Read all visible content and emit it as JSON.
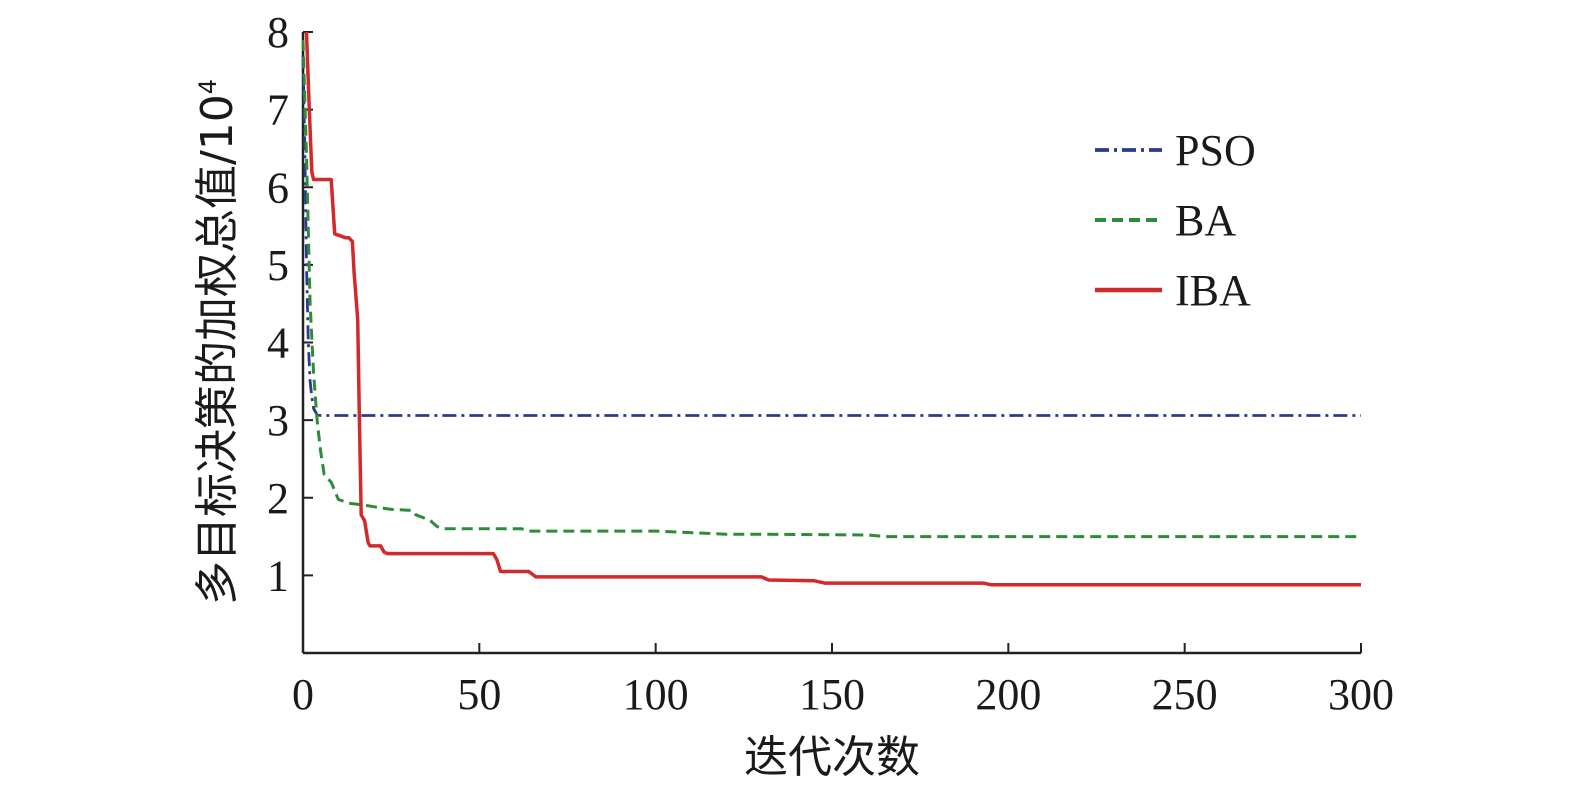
{
  "chart_data": {
    "type": "line",
    "title": "",
    "xlabel": "迭代次数",
    "ylabel": "多目标决策的加权总值/10",
    "ylabel_superscript": "4",
    "xlim": [
      0,
      300
    ],
    "ylim": [
      0,
      8
    ],
    "x_ticks": [
      "0",
      "50",
      "100",
      "150",
      "200",
      "250",
      "300"
    ],
    "y_ticks": [
      "1",
      "2",
      "3",
      "4",
      "5",
      "6",
      "7",
      "8"
    ],
    "grid": false,
    "legend_position": "top-right",
    "series": [
      {
        "name": "PSO",
        "color": "#2b3a8f",
        "dash": "dashdot",
        "points": [
          [
            0,
            7.7
          ],
          [
            0.5,
            6.5
          ],
          [
            1,
            5.0
          ],
          [
            1.5,
            4.0
          ],
          [
            2,
            3.5
          ],
          [
            2.5,
            3.3
          ],
          [
            3,
            3.15
          ],
          [
            4,
            3.07
          ],
          [
            5,
            3.06
          ],
          [
            300,
            3.06
          ]
        ]
      },
      {
        "name": "BA",
        "color": "#2e8b3a",
        "dash": "dashed",
        "points": [
          [
            0,
            7.9
          ],
          [
            1,
            6.4
          ],
          [
            2,
            4.5
          ],
          [
            3,
            3.6
          ],
          [
            4,
            3.0
          ],
          [
            5,
            2.6
          ],
          [
            6,
            2.3
          ],
          [
            8,
            2.2
          ],
          [
            10,
            1.98
          ],
          [
            13,
            1.93
          ],
          [
            18,
            1.9
          ],
          [
            22,
            1.87
          ],
          [
            25,
            1.85
          ],
          [
            30,
            1.84
          ],
          [
            31,
            1.84
          ],
          [
            32,
            1.78
          ],
          [
            36,
            1.71
          ],
          [
            38,
            1.63
          ],
          [
            40,
            1.6
          ],
          [
            50,
            1.6
          ],
          [
            62,
            1.6
          ],
          [
            64,
            1.57
          ],
          [
            100,
            1.57
          ],
          [
            120,
            1.53
          ],
          [
            130,
            1.53
          ],
          [
            160,
            1.52
          ],
          [
            165,
            1.5
          ],
          [
            300,
            1.5
          ]
        ]
      },
      {
        "name": "IBA",
        "color": "#d22a2a",
        "dash": "solid",
        "points": [
          [
            1,
            8.0
          ],
          [
            1.8,
            7.0
          ],
          [
            2.5,
            6.2
          ],
          [
            3,
            6.1
          ],
          [
            7,
            6.1
          ],
          [
            8,
            6.1
          ],
          [
            9,
            5.4
          ],
          [
            12,
            5.35
          ],
          [
            13,
            5.35
          ],
          [
            14,
            5.3
          ],
          [
            14.5,
            4.9
          ],
          [
            15.5,
            4.3
          ],
          [
            16,
            3.0
          ],
          [
            16.5,
            1.78
          ],
          [
            17.5,
            1.7
          ],
          [
            18,
            1.55
          ],
          [
            18.5,
            1.42
          ],
          [
            19,
            1.38
          ],
          [
            22,
            1.38
          ],
          [
            23,
            1.3
          ],
          [
            24,
            1.28
          ],
          [
            54,
            1.28
          ],
          [
            55,
            1.2
          ],
          [
            56,
            1.05
          ],
          [
            64,
            1.05
          ],
          [
            66,
            0.98
          ],
          [
            130,
            0.98
          ],
          [
            132,
            0.94
          ],
          [
            145,
            0.93
          ],
          [
            148,
            0.9
          ],
          [
            193,
            0.9
          ],
          [
            195,
            0.88
          ],
          [
            300,
            0.88
          ]
        ]
      }
    ]
  }
}
